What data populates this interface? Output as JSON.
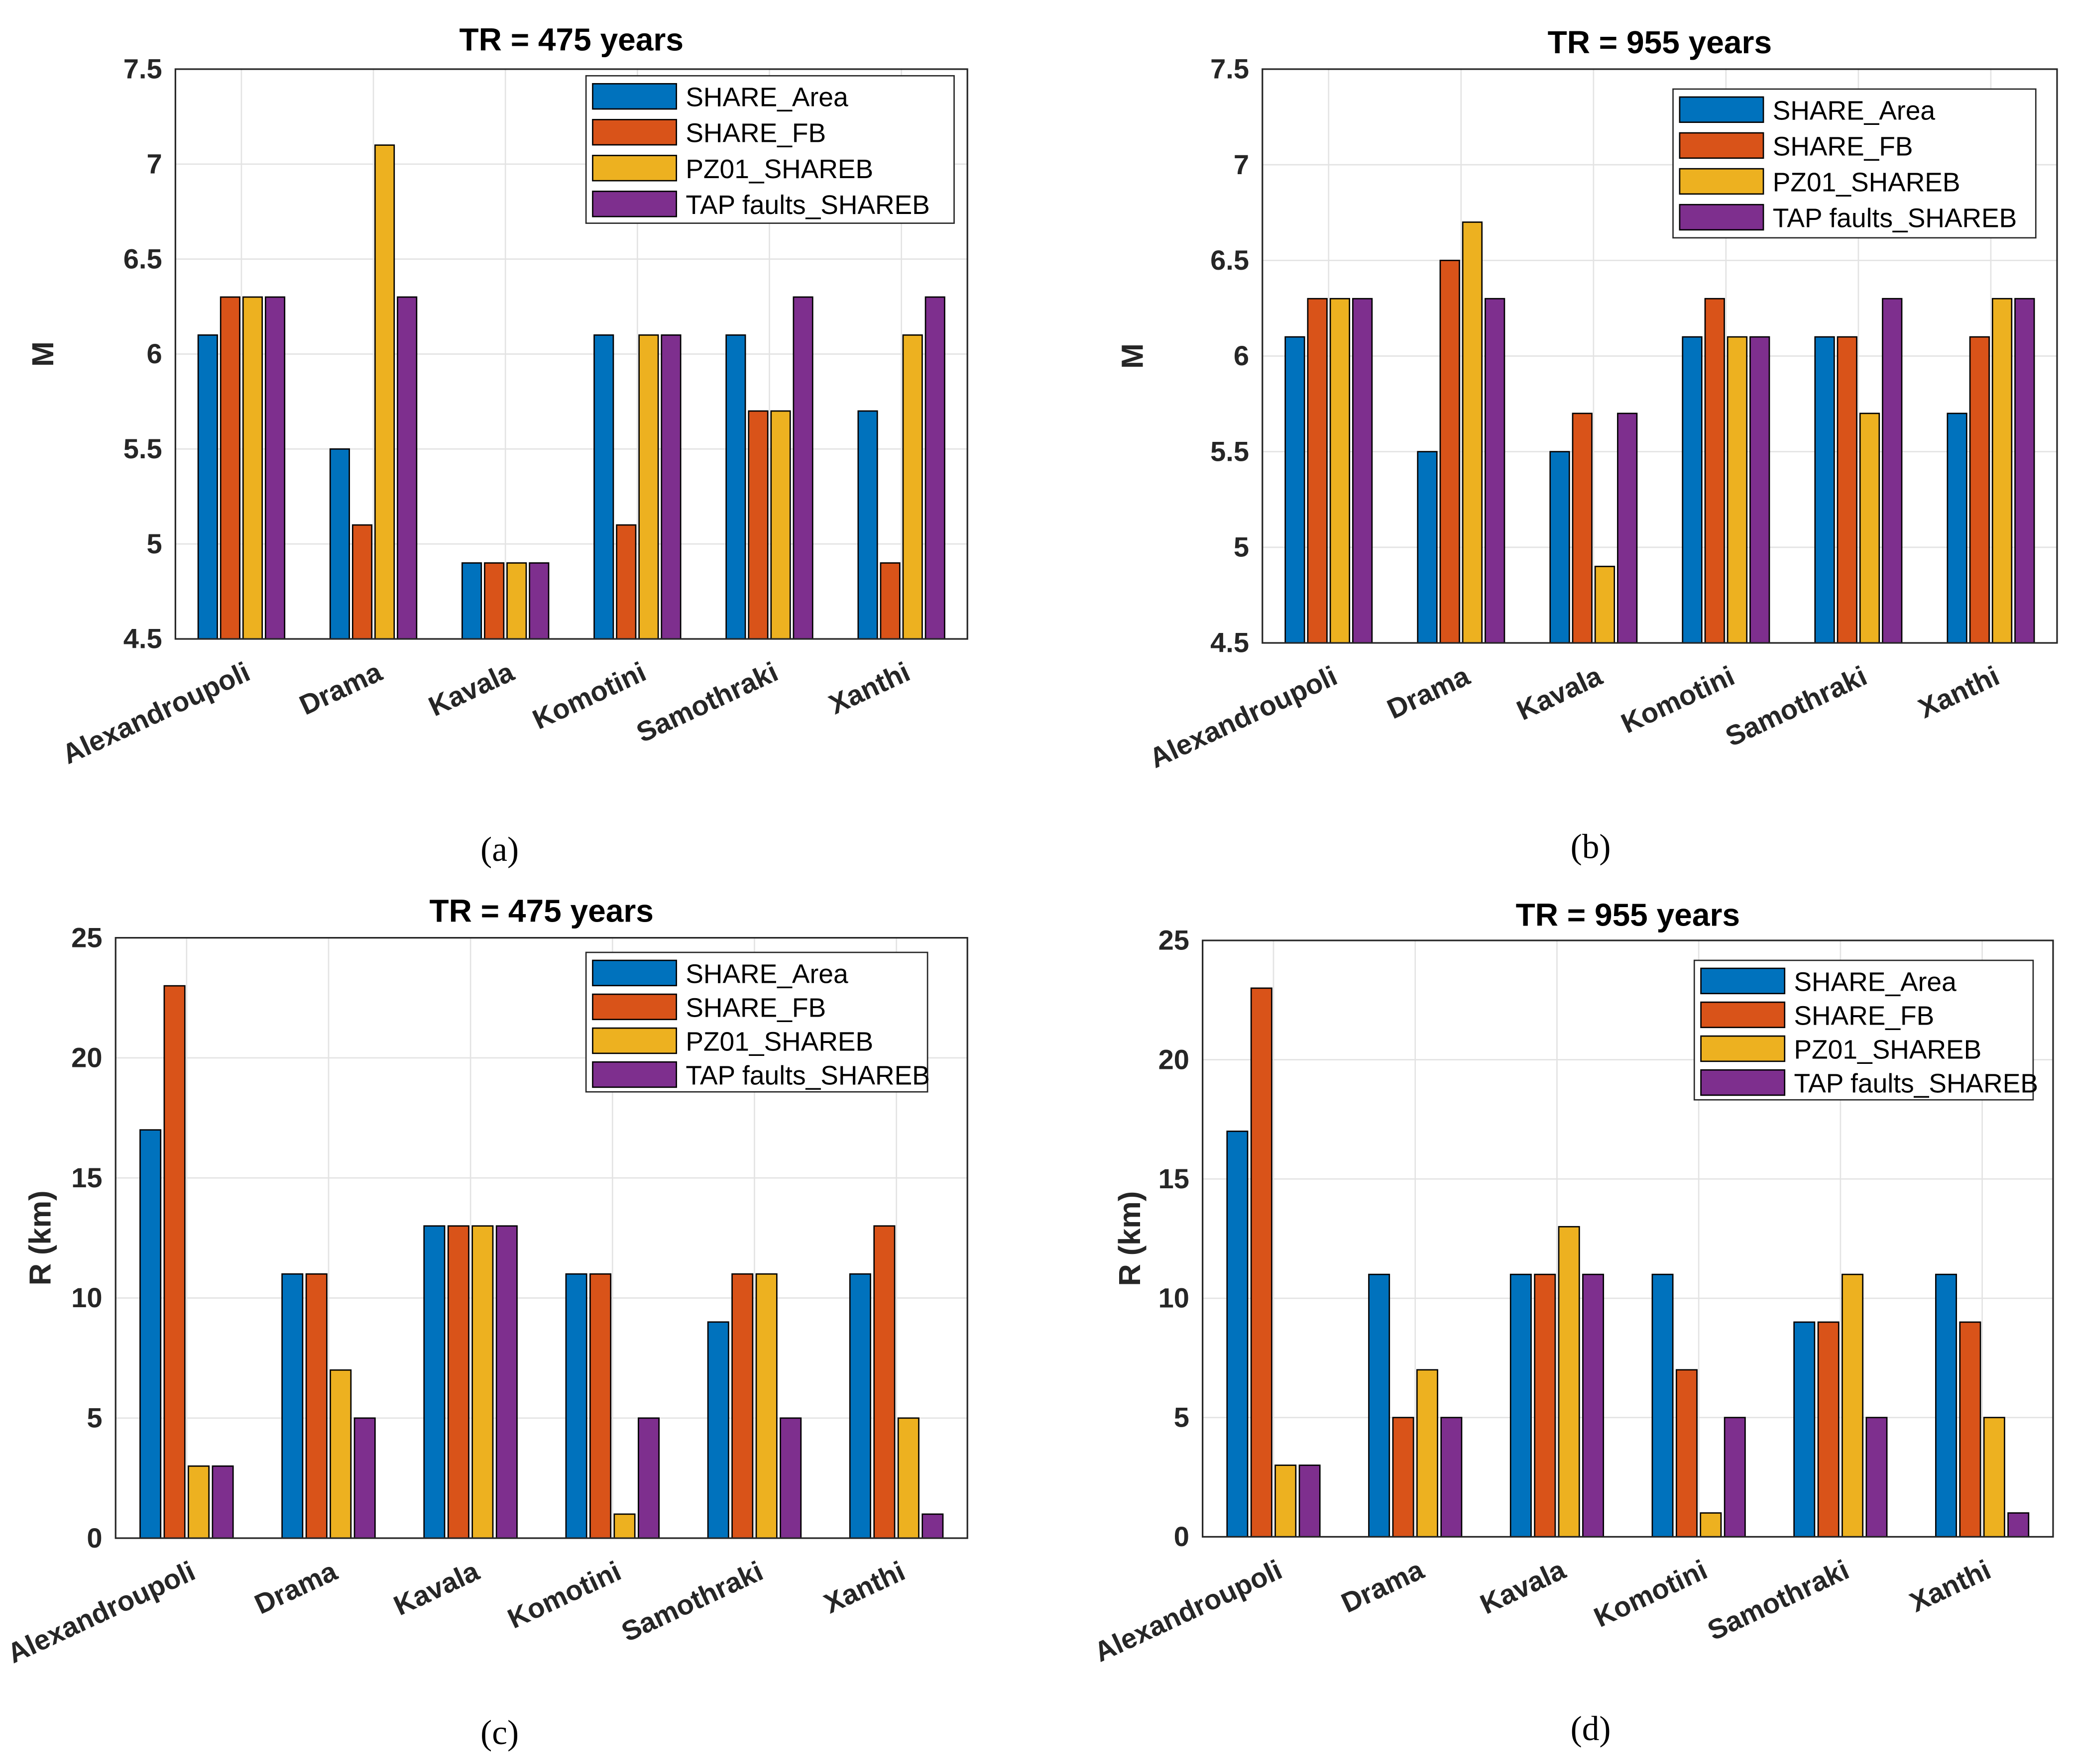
{
  "colors": [
    "#0072BD",
    "#D95319",
    "#EDB120",
    "#7E2F8E"
  ],
  "chart_data": [
    {
      "panel": "(a)",
      "type": "bar",
      "title": "TR = 475 years",
      "xlabel": "",
      "ylabel": "M",
      "ylim": [
        4.5,
        7.5
      ],
      "yticks": [
        "4.5",
        "5",
        "5.5",
        "6",
        "6.5",
        "7",
        "7.5"
      ],
      "grid": true,
      "legend_position": "top-right",
      "categories": [
        "Alexandroupoli",
        "Drama",
        "Kavala",
        "Komotini",
        "Samothraki",
        "Xanthi"
      ],
      "series": [
        {
          "name": "SHARE_Area",
          "values": [
            6.1,
            5.5,
            4.9,
            6.1,
            6.1,
            5.7
          ]
        },
        {
          "name": "SHARE_FB",
          "values": [
            6.3,
            5.1,
            4.9,
            5.1,
            5.7,
            4.9
          ]
        },
        {
          "name": "PZ01_SHAREB",
          "values": [
            6.3,
            7.1,
            4.9,
            6.1,
            5.7,
            6.1
          ]
        },
        {
          "name": "TAP faults_SHAREB",
          "values": [
            6.3,
            6.3,
            4.9,
            6.1,
            6.3,
            6.3
          ]
        }
      ]
    },
    {
      "panel": "(b)",
      "type": "bar",
      "title": "TR = 955 years",
      "xlabel": "",
      "ylabel": "M",
      "ylim": [
        4.5,
        7.5
      ],
      "yticks": [
        "4.5",
        "5",
        "5.5",
        "6",
        "6.5",
        "7",
        "7.5"
      ],
      "grid": true,
      "legend_position": "top-right",
      "categories": [
        "Alexandroupoli",
        "Drama",
        "Kavala",
        "Komotini",
        "Samothraki",
        "Xanthi"
      ],
      "series": [
        {
          "name": "SHARE_Area",
          "values": [
            6.1,
            5.5,
            5.5,
            6.1,
            6.1,
            5.7
          ]
        },
        {
          "name": "SHARE_FB",
          "values": [
            6.3,
            6.5,
            5.7,
            6.3,
            6.1,
            6.1
          ]
        },
        {
          "name": "PZ01_SHAREB",
          "values": [
            6.3,
            6.7,
            4.9,
            6.1,
            5.7,
            6.3
          ]
        },
        {
          "name": "TAP faults_SHAREB",
          "values": [
            6.3,
            6.3,
            5.7,
            6.1,
            6.3,
            6.3
          ]
        }
      ]
    },
    {
      "panel": "(c)",
      "type": "bar",
      "title": "TR = 475 years",
      "xlabel": "",
      "ylabel": "R (km)",
      "ylim": [
        0,
        25
      ],
      "yticks": [
        "0",
        "5",
        "10",
        "15",
        "20",
        "25"
      ],
      "grid": true,
      "legend_position": "top-right",
      "categories": [
        "Alexandroupoli",
        "Drama",
        "Kavala",
        "Komotini",
        "Samothraki",
        "Xanthi"
      ],
      "series": [
        {
          "name": "SHARE_Area",
          "values": [
            17,
            11,
            13,
            11,
            9,
            11
          ]
        },
        {
          "name": "SHARE_FB",
          "values": [
            23,
            11,
            13,
            11,
            11,
            13
          ]
        },
        {
          "name": "PZ01_SHAREB",
          "values": [
            3,
            7,
            13,
            1,
            11,
            5
          ]
        },
        {
          "name": "TAP faults_SHAREB",
          "values": [
            3,
            5,
            13,
            5,
            5,
            1
          ]
        }
      ]
    },
    {
      "panel": "(d)",
      "type": "bar",
      "title": "TR = 955 years",
      "xlabel": "",
      "ylabel": "R (km)",
      "ylim": [
        0,
        25
      ],
      "yticks": [
        "0",
        "5",
        "10",
        "15",
        "20",
        "25"
      ],
      "grid": true,
      "legend_position": "top-right",
      "categories": [
        "Alexandroupoli",
        "Drama",
        "Kavala",
        "Komotini",
        "Samothraki",
        "Xanthi"
      ],
      "series": [
        {
          "name": "SHARE_Area",
          "values": [
            17,
            11,
            11,
            11,
            9,
            11
          ]
        },
        {
          "name": "SHARE_FB",
          "values": [
            23,
            5,
            11,
            7,
            9,
            9
          ]
        },
        {
          "name": "PZ01_SHAREB",
          "values": [
            3,
            7,
            13,
            1,
            11,
            5
          ]
        },
        {
          "name": "TAP faults_SHAREB",
          "values": [
            3,
            5,
            11,
            5,
            5,
            1
          ]
        }
      ]
    }
  ]
}
